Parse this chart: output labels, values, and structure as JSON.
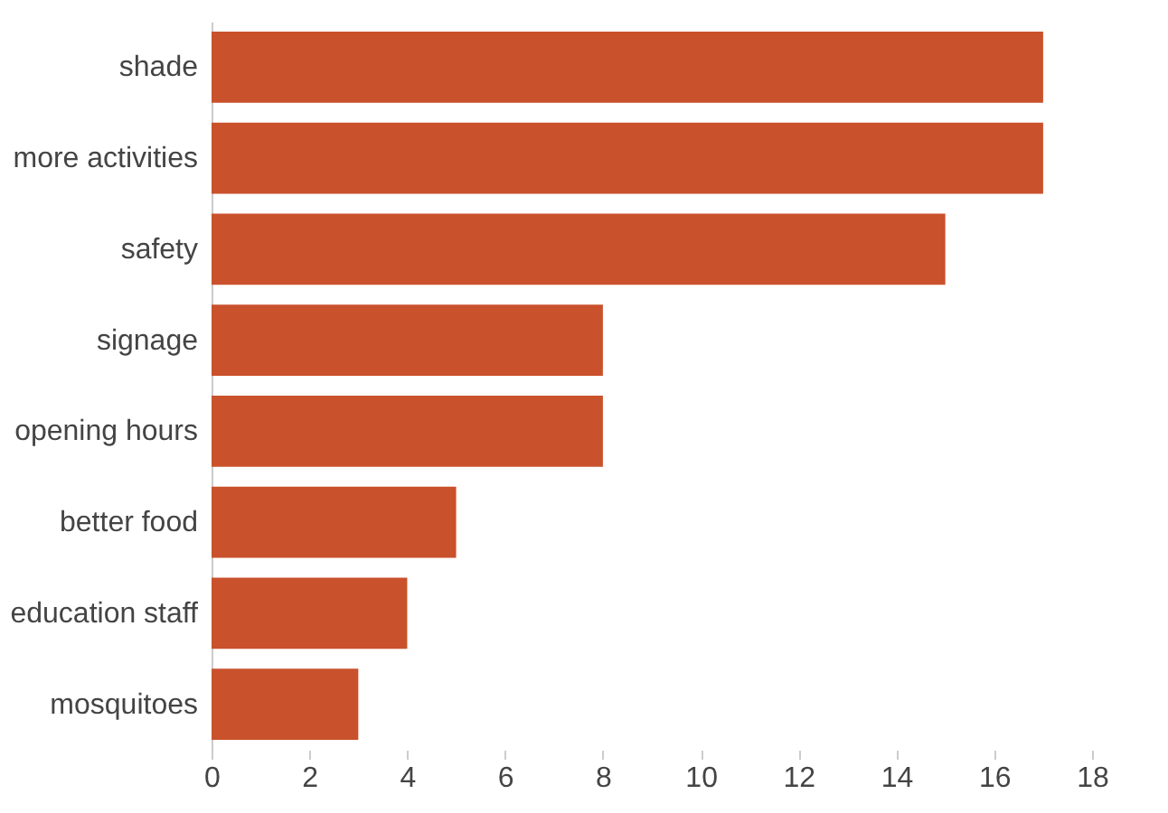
{
  "chart_data": {
    "type": "bar",
    "orientation": "horizontal",
    "categories": [
      "shade",
      "more activities",
      "safety",
      "signage",
      "opening hours",
      "better food",
      "education staff",
      "mosquitoes"
    ],
    "values": [
      17,
      17,
      15,
      8,
      8,
      5,
      4,
      3
    ],
    "color": "#c9512b",
    "xlim": [
      0,
      18
    ],
    "xticks": [
      0,
      2,
      4,
      6,
      8,
      10,
      12,
      14,
      16,
      18
    ],
    "grid": false
  }
}
